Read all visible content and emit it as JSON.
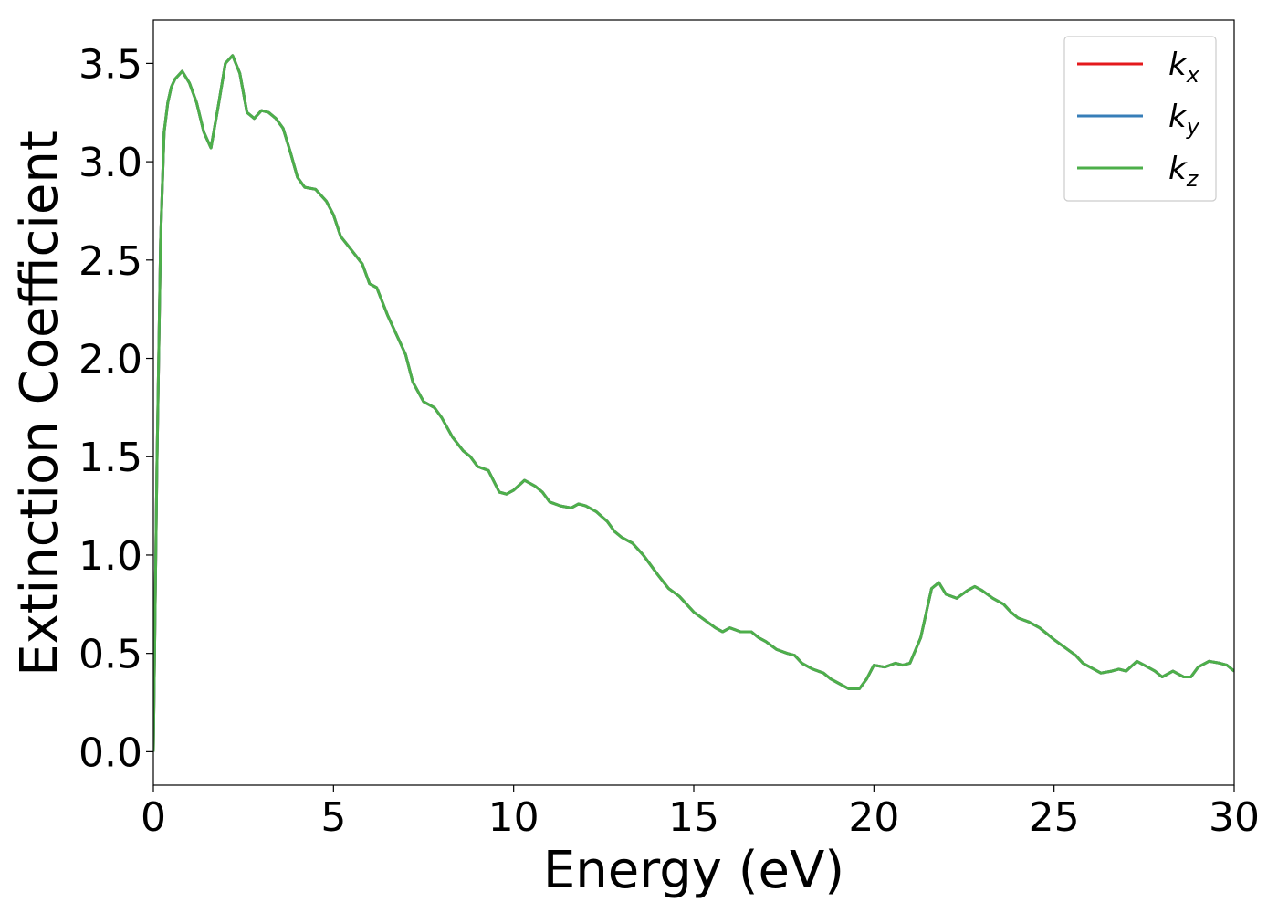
{
  "chart_data": {
    "type": "line",
    "title": "",
    "xlabel": "Energy (eV)",
    "ylabel": "Extinction Coefficient",
    "xlim": [
      0,
      30
    ],
    "ylim": [
      -0.17,
      3.72
    ],
    "xticks": [
      0,
      5,
      10,
      15,
      20,
      25,
      30
    ],
    "xtick_labels": [
      "0",
      "5",
      "10",
      "15",
      "20",
      "25",
      "30"
    ],
    "yticks": [
      0.0,
      0.5,
      1.0,
      1.5,
      2.0,
      2.5,
      3.0,
      3.5
    ],
    "ytick_labels": [
      "0.0",
      "0.5",
      "1.0",
      "1.5",
      "2.0",
      "2.5",
      "3.0",
      "3.5"
    ],
    "grid": false,
    "legend_position": "top-right",
    "series": [
      {
        "name": "k",
        "subscript": "x",
        "color": "#e41a1c"
      },
      {
        "name": "k",
        "subscript": "y",
        "color": "#377eb8"
      },
      {
        "name": "k",
        "subscript": "z",
        "color": "#4daf4a"
      }
    ],
    "x": [
      0.0,
      0.1,
      0.2,
      0.3,
      0.4,
      0.5,
      0.6,
      0.8,
      1.0,
      1.2,
      1.4,
      1.6,
      1.8,
      2.0,
      2.2,
      2.4,
      2.6,
      2.8,
      3.0,
      3.2,
      3.4,
      3.6,
      3.8,
      4.0,
      4.2,
      4.5,
      4.8,
      5.0,
      5.2,
      5.5,
      5.8,
      6.0,
      6.2,
      6.5,
      6.8,
      7.0,
      7.2,
      7.5,
      7.8,
      8.0,
      8.3,
      8.6,
      8.8,
      9.0,
      9.3,
      9.6,
      9.8,
      10.0,
      10.3,
      10.6,
      10.8,
      11.0,
      11.3,
      11.6,
      11.8,
      12.0,
      12.3,
      12.6,
      12.8,
      13.0,
      13.3,
      13.6,
      13.8,
      14.0,
      14.3,
      14.6,
      14.8,
      15.0,
      15.3,
      15.6,
      15.8,
      16.0,
      16.3,
      16.6,
      16.8,
      17.0,
      17.3,
      17.6,
      17.8,
      18.0,
      18.3,
      18.6,
      18.8,
      19.0,
      19.3,
      19.6,
      19.8,
      20.0,
      20.3,
      20.6,
      20.8,
      21.0,
      21.3,
      21.6,
      21.8,
      22.0,
      22.3,
      22.6,
      22.8,
      23.0,
      23.3,
      23.6,
      23.8,
      24.0,
      24.3,
      24.6,
      24.8,
      25.0,
      25.3,
      25.6,
      25.8,
      26.0,
      26.3,
      26.6,
      26.8,
      27.0,
      27.3,
      27.6,
      27.8,
      28.0,
      28.3,
      28.6,
      28.8,
      29.0,
      29.3,
      29.6,
      29.8,
      30.0
    ],
    "y": [
      0.0,
      1.45,
      2.6,
      3.15,
      3.3,
      3.38,
      3.42,
      3.46,
      3.4,
      3.3,
      3.15,
      3.07,
      3.28,
      3.5,
      3.54,
      3.45,
      3.25,
      3.22,
      3.26,
      3.25,
      3.22,
      3.17,
      3.05,
      2.92,
      2.87,
      2.86,
      2.8,
      2.73,
      2.62,
      2.55,
      2.48,
      2.38,
      2.36,
      2.22,
      2.1,
      2.02,
      1.88,
      1.78,
      1.75,
      1.7,
      1.6,
      1.53,
      1.5,
      1.45,
      1.43,
      1.32,
      1.31,
      1.33,
      1.38,
      1.35,
      1.32,
      1.27,
      1.25,
      1.24,
      1.26,
      1.25,
      1.22,
      1.17,
      1.12,
      1.09,
      1.06,
      1.0,
      0.95,
      0.9,
      0.83,
      0.79,
      0.75,
      0.71,
      0.67,
      0.63,
      0.61,
      0.63,
      0.61,
      0.61,
      0.58,
      0.56,
      0.52,
      0.5,
      0.49,
      0.45,
      0.42,
      0.4,
      0.37,
      0.35,
      0.32,
      0.32,
      0.37,
      0.44,
      0.43,
      0.45,
      0.44,
      0.45,
      0.58,
      0.83,
      0.86,
      0.8,
      0.78,
      0.82,
      0.84,
      0.82,
      0.78,
      0.75,
      0.71,
      0.68,
      0.66,
      0.63,
      0.6,
      0.57,
      0.53,
      0.49,
      0.45,
      0.43,
      0.4,
      0.41,
      0.42,
      0.41,
      0.46,
      0.43,
      0.41,
      0.38,
      0.41,
      0.38,
      0.38,
      0.43,
      0.46,
      0.45,
      0.44,
      0.41
    ]
  }
}
